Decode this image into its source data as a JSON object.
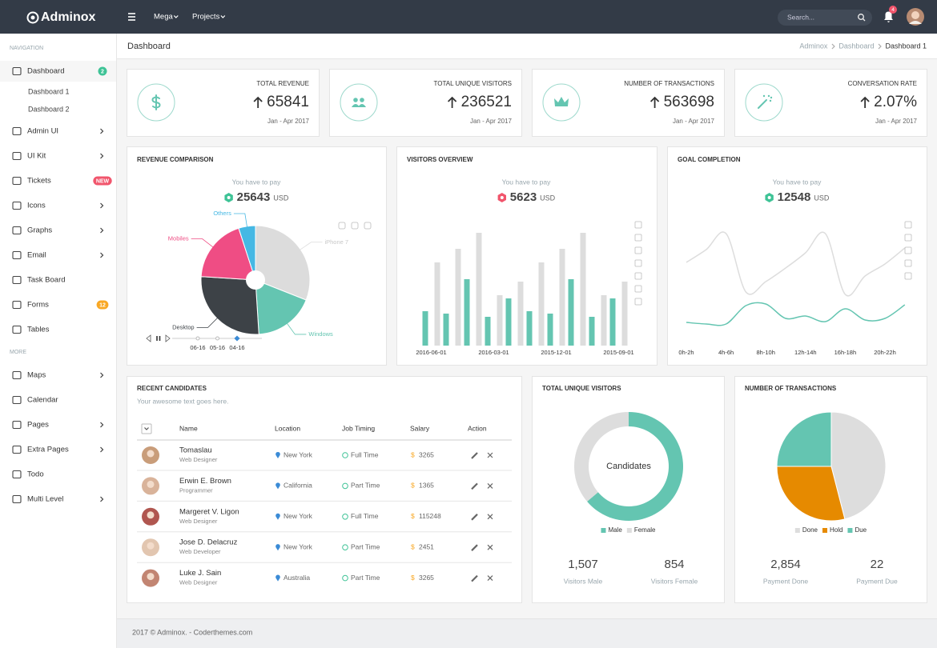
{
  "topbar": {
    "brand": "Adminox",
    "menu": [
      "Mega",
      "Projects"
    ],
    "search_placeholder": "Search...",
    "notifications": "4"
  },
  "sidebar": {
    "sections": [
      {
        "heading": "NAVIGATION",
        "items": [
          {
            "label": "Dashboard",
            "badge": "2",
            "badge_color": "#3ec396",
            "children": [
              "Dashboard 1",
              "Dashboard 2"
            ]
          },
          {
            "label": "Admin UI",
            "arrow": true
          },
          {
            "label": "UI Kit",
            "arrow": true
          },
          {
            "label": "Tickets",
            "badge": "NEW",
            "badge_color": "#f1556c"
          },
          {
            "label": "Icons",
            "arrow": true
          },
          {
            "label": "Graphs",
            "arrow": true
          },
          {
            "label": "Email",
            "arrow": true
          },
          {
            "label": "Task Board"
          },
          {
            "label": "Forms",
            "badge": "12",
            "badge_color": "#f9a825"
          },
          {
            "label": "Tables"
          }
        ]
      },
      {
        "heading": "MORE",
        "items": [
          {
            "label": "Maps",
            "arrow": true
          },
          {
            "label": "Calendar"
          },
          {
            "label": "Pages",
            "arrow": true
          },
          {
            "label": "Extra Pages",
            "arrow": true
          },
          {
            "label": "Todo"
          },
          {
            "label": "Multi Level",
            "arrow": true
          }
        ]
      }
    ]
  },
  "page_header": {
    "title": "Dashboard",
    "breadcrumb": [
      "Adminox",
      "Dashboard",
      "Dashboard 1"
    ]
  },
  "stats": [
    {
      "title": "TOTAL REVENUE",
      "value": "65841",
      "period": "Jan - Apr 2017"
    },
    {
      "title": "TOTAL UNIQUE VISITORS",
      "value": "236521",
      "period": "Jan - Apr 2017"
    },
    {
      "title": "NUMBER OF TRANSACTIONS",
      "value": "563698",
      "period": "Jan - Apr 2017"
    },
    {
      "title": "CONVERSATION RATE",
      "value": "2.07%",
      "period": "Jan - Apr 2017"
    }
  ],
  "panels": [
    {
      "title": "REVENUE COMPARISON",
      "pay_label": "You have to pay",
      "amount": "25643",
      "currency": "USD",
      "icon_color": "#3ec396",
      "chart": {
        "type": "pie",
        "labels": [
          "iPhone 7",
          "Windows",
          "Desktop",
          "Mobiles",
          "Others"
        ],
        "values": [
          31,
          18,
          27,
          19,
          5
        ],
        "colors": [
          "#dcdcdc",
          "#64c5b1",
          "#3d4247",
          "#ef4d84",
          "#45b8e4"
        ],
        "timeline": [
          "06-16",
          "05-16",
          "04-16"
        ]
      }
    },
    {
      "title": "VISITORS OVERVIEW",
      "pay_label": "You have to pay",
      "amount": "5623",
      "currency": "USD",
      "icon_color": "#f1556c",
      "chart": {
        "type": "bar",
        "categories": [
          "2016-06-01",
          null,
          null,
          "2016-03-01",
          null,
          null,
          "2015-12-01",
          null,
          null,
          "2015-09-01"
        ],
        "series": [
          {
            "color": "#64c5b1",
            "values": [
              43,
              40,
              83,
              36,
              59,
              43,
              40,
              83,
              36,
              59
            ]
          },
          {
            "color": "#dddddd",
            "values": [
              104,
              121,
              141,
              63,
              80,
              104,
              121,
              141,
              63,
              80
            ]
          }
        ]
      }
    },
    {
      "title": "GOAL COMPLETION",
      "pay_label": "You have to pay",
      "amount": "12548",
      "currency": "USD",
      "icon_color": "#3ec396",
      "chart": {
        "type": "line",
        "categories": [
          "0h-2h",
          null,
          "4h-6h",
          null,
          "8h-10h",
          null,
          "12h-14h",
          null,
          "16h-18h",
          null,
          "20h-22h",
          null
        ],
        "series": [
          {
            "color": "#dddddd",
            "values": [
              112,
              128,
              148,
              75,
              88,
              105,
              124,
              148,
              72,
              95,
              110,
              130
            ]
          },
          {
            "color": "#64c5b1",
            "values": [
              37,
              35,
              35,
              58,
              60,
              42,
              45,
              38,
              54,
              40,
              42,
              59
            ]
          }
        ]
      }
    }
  ],
  "candidates": {
    "title": "RECENT CANDIDATES",
    "subtitle": "Your awesome text goes here.",
    "currency": "$",
    "columns": [
      "Name",
      "Location",
      "Job Timing",
      "Salary",
      "Action"
    ],
    "rows": [
      {
        "name": "Tomaslau",
        "role": "Web Designer",
        "location": "New York",
        "timing": "Full Time",
        "salary": "3265"
      },
      {
        "name": "Erwin E. Brown",
        "role": "Programmer",
        "location": "California",
        "timing": "Part Time",
        "salary": "1365"
      },
      {
        "name": "Margeret V. Ligon",
        "role": "Web Designer",
        "location": "New York",
        "timing": "Full Time",
        "salary": "115248"
      },
      {
        "name": "Jose D. Delacruz",
        "role": "Web Developer",
        "location": "New York",
        "timing": "Part Time",
        "salary": "2451"
      },
      {
        "name": "Luke J. Sain",
        "role": "Web Designer",
        "location": "Australia",
        "timing": "Part Time",
        "salary": "3265"
      }
    ]
  },
  "visitors": {
    "title": "TOTAL UNIQUE VISITORS",
    "center_label": "Candidates",
    "chart": {
      "type": "donut",
      "labels": [
        "Male",
        "Female"
      ],
      "values": [
        1507,
        854
      ],
      "colors": [
        "#64c5b1",
        "#dddddd"
      ],
      "legend": "bottom"
    },
    "stats": [
      {
        "value": "1,507",
        "label": "Visitors Male"
      },
      {
        "value": "854",
        "label": "Visitors Female"
      }
    ]
  },
  "transactions": {
    "title": "NUMBER OF TRANSACTIONS",
    "chart": {
      "type": "pie",
      "labels": [
        "Done",
        "Due",
        "Hold"
      ],
      "values": [
        46,
        25,
        29
      ],
      "colors": [
        "#dddddd",
        "#64c5b1",
        "#e68a00"
      ],
      "legend": "bottom",
      "order": [
        0,
        2,
        1
      ]
    },
    "stats": [
      {
        "value": "2,854",
        "label": "Payment Done"
      },
      {
        "value": "22",
        "label": "Payment Due"
      }
    ]
  },
  "footer": "2017 © Adminox. - Coderthemes.com"
}
